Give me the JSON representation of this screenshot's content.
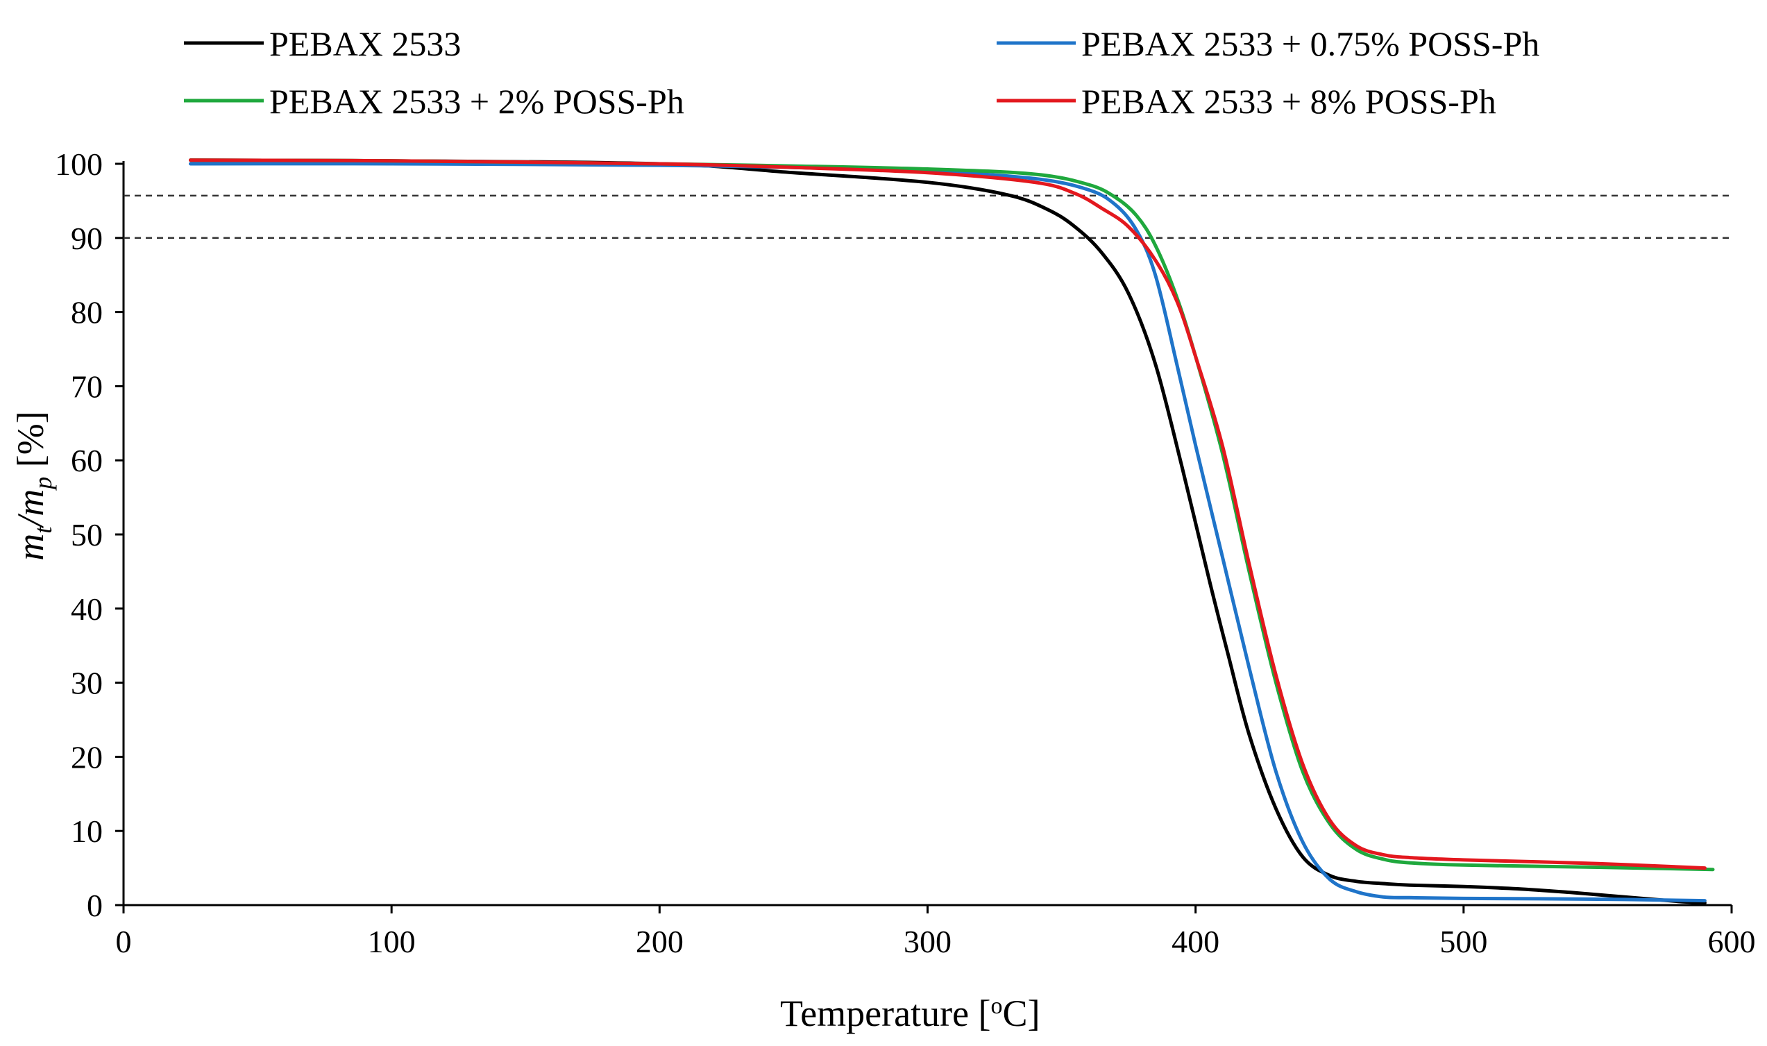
{
  "chart_data": {
    "type": "line",
    "title": "",
    "xlabel": "Temperature  [oC]",
    "xlabel_parts": {
      "main": "Temperature  [",
      "sup": "o",
      "end": "C]"
    },
    "ylabel_parts": {
      "m1": "m",
      "sub1": "t",
      "slash": "/",
      "m2": "m",
      "sub2": "p",
      "unit": " [%]"
    },
    "xlim": [
      0,
      600
    ],
    "ylim": [
      0,
      100
    ],
    "x_ticks": [
      0,
      100,
      200,
      300,
      400,
      500,
      600
    ],
    "y_ticks": [
      0,
      10,
      20,
      30,
      40,
      50,
      60,
      70,
      80,
      90,
      100
    ],
    "grid": false,
    "legend_position": "top",
    "reference_lines": [
      {
        "axis": "y",
        "value": 95.7,
        "style": "dashed"
      },
      {
        "axis": "y",
        "value": 90,
        "style": "dashed"
      }
    ],
    "series": [
      {
        "name": "PEBAX 2533",
        "color": "#000000",
        "x": [
          25,
          100,
          200,
          250,
          300,
          330,
          345,
          355,
          365,
          375,
          385,
          395,
          405,
          412,
          420,
          430,
          440,
          450,
          460,
          470,
          480,
          500,
          520,
          540,
          560,
          580,
          590
        ],
        "y": [
          100.5,
          100.4,
          100.0,
          98.8,
          97.5,
          95.8,
          93.8,
          91.5,
          88.0,
          82.5,
          73.0,
          59.0,
          44.0,
          34.0,
          23.0,
          13.0,
          6.5,
          4.0,
          3.2,
          2.9,
          2.7,
          2.5,
          2.2,
          1.7,
          1.1,
          0.5,
          0.3
        ]
      },
      {
        "name": "PEBAX 2533 + 0.75% POSS-Ph",
        "color": "#1f74c9",
        "x": [
          25,
          100,
          200,
          250,
          300,
          340,
          360,
          370,
          378,
          385,
          393,
          400,
          410,
          420,
          430,
          440,
          450,
          460,
          470,
          480,
          500,
          550,
          590
        ],
        "y": [
          100.0,
          100.0,
          99.8,
          99.5,
          99.0,
          98.0,
          96.5,
          94.5,
          91.0,
          85.0,
          73.0,
          62.0,
          47.0,
          32.0,
          18.0,
          8.5,
          3.5,
          1.8,
          1.1,
          1.0,
          0.9,
          0.8,
          0.6
        ]
      },
      {
        "name": "PEBAX 2533 + 2% POSS-Ph",
        "color": "#1fa83d",
        "x": [
          25,
          100,
          200,
          250,
          300,
          340,
          360,
          370,
          378,
          385,
          393,
          400,
          410,
          420,
          430,
          440,
          450,
          460,
          470,
          480,
          500,
          550,
          593
        ],
        "y": [
          100.5,
          100.4,
          100.0,
          99.7,
          99.3,
          98.6,
          97.2,
          95.5,
          93.0,
          89.0,
          82.0,
          74.0,
          61.0,
          45.0,
          30.0,
          18.0,
          11.0,
          7.5,
          6.2,
          5.7,
          5.4,
          5.1,
          4.8
        ]
      },
      {
        "name": "PEBAX 2533 + 8% POSS-Ph",
        "color": "#e3181e",
        "x": [
          25,
          100,
          200,
          250,
          300,
          340,
          355,
          365,
          375,
          385,
          393,
          400,
          410,
          420,
          430,
          440,
          450,
          460,
          470,
          480,
          500,
          550,
          590
        ],
        "y": [
          100.5,
          100.4,
          100.0,
          99.5,
          98.8,
          97.5,
          96.0,
          94.0,
          91.5,
          87.0,
          81.5,
          74.0,
          62.0,
          46.0,
          31.0,
          19.0,
          11.5,
          8.0,
          6.8,
          6.4,
          6.1,
          5.6,
          5.0
        ]
      }
    ]
  }
}
